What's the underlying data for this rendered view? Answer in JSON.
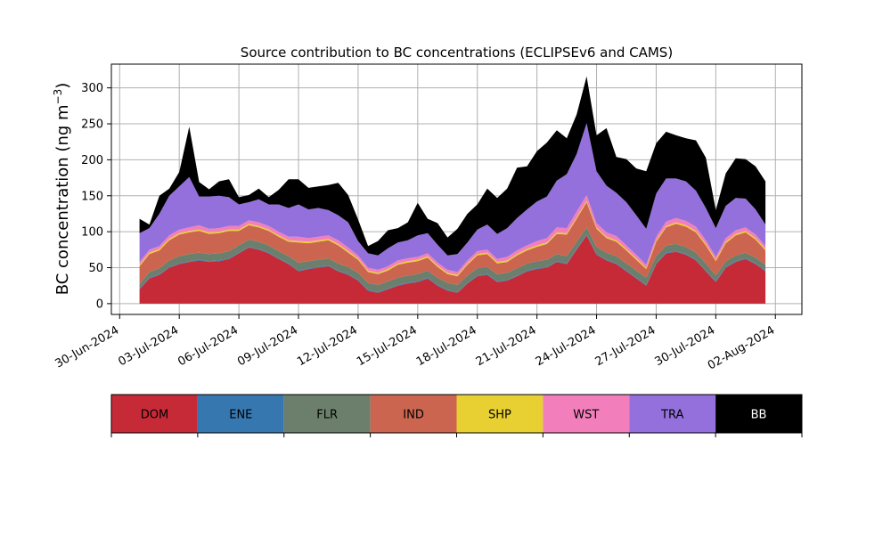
{
  "chart_data": {
    "type": "area",
    "stacked": true,
    "title": "Source contribution to BC concentrations (ECLIPSEv6 and CAMS)",
    "ylabel": "BC concentration (ng m",
    "ylabel_sup": "−3",
    "ylabel_close": ")",
    "ylim": [
      -15,
      333
    ],
    "xlim": [
      "2024-06-29T14:00",
      "2024-08-03T08:00"
    ],
    "grid": true,
    "yticks": [
      0,
      50,
      100,
      150,
      200,
      250,
      300
    ],
    "xtick_dates": [
      "2024-06-30",
      "2024-07-03",
      "2024-07-06",
      "2024-07-09",
      "2024-07-12",
      "2024-07-15",
      "2024-07-18",
      "2024-07-21",
      "2024-07-24",
      "2024-07-27",
      "2024-07-30",
      "2024-08-02"
    ],
    "xtick_labels": [
      "30-Jun-2024",
      "03-Jul-2024",
      "06-Jul-2024",
      "09-Jul-2024",
      "12-Jul-2024",
      "15-Jul-2024",
      "18-Jul-2024",
      "21-Jul-2024",
      "24-Jul-2024",
      "27-Jul-2024",
      "30-Jul-2024",
      "02-Aug-2024"
    ],
    "x": [
      "2024-07-01",
      "2024-07-01T12:00",
      "2024-07-02",
      "2024-07-02T12:00",
      "2024-07-03",
      "2024-07-03T12:00",
      "2024-07-04",
      "2024-07-04T12:00",
      "2024-07-05",
      "2024-07-05T12:00",
      "2024-07-06",
      "2024-07-06T12:00",
      "2024-07-07",
      "2024-07-07T12:00",
      "2024-07-08",
      "2024-07-08T12:00",
      "2024-07-09",
      "2024-07-09T12:00",
      "2024-07-10",
      "2024-07-10T12:00",
      "2024-07-11",
      "2024-07-11T12:00",
      "2024-07-12",
      "2024-07-12T12:00",
      "2024-07-13",
      "2024-07-13T12:00",
      "2024-07-14",
      "2024-07-14T12:00",
      "2024-07-15",
      "2024-07-15T12:00",
      "2024-07-16",
      "2024-07-16T12:00",
      "2024-07-17",
      "2024-07-17T12:00",
      "2024-07-18",
      "2024-07-18T12:00",
      "2024-07-19",
      "2024-07-19T12:00",
      "2024-07-20",
      "2024-07-20T12:00",
      "2024-07-21",
      "2024-07-21T12:00",
      "2024-07-22",
      "2024-07-22T12:00",
      "2024-07-23",
      "2024-07-23T12:00",
      "2024-07-24",
      "2024-07-24T12:00",
      "2024-07-25",
      "2024-07-25T12:00",
      "2024-07-26",
      "2024-07-26T12:00",
      "2024-07-27",
      "2024-07-27T12:00",
      "2024-07-28",
      "2024-07-28T12:00",
      "2024-07-29",
      "2024-07-29T12:00",
      "2024-07-30",
      "2024-07-30T12:00",
      "2024-07-31",
      "2024-07-31T12:00",
      "2024-08-01",
      "2024-08-01T12:00"
    ],
    "series": [
      {
        "name": "DOM",
        "color": "#c62a37",
        "values": [
          20,
          35,
          40,
          50,
          55,
          58,
          60,
          58,
          59,
          62,
          70,
          78,
          75,
          70,
          62,
          55,
          45,
          48,
          50,
          52,
          45,
          40,
          32,
          18,
          15,
          20,
          25,
          28,
          30,
          35,
          25,
          18,
          15,
          28,
          38,
          40,
          30,
          32,
          38,
          45,
          48,
          50,
          58,
          55,
          75,
          95,
          68,
          60,
          55,
          45,
          35,
          25,
          55,
          70,
          72,
          68,
          60,
          45,
          30,
          50,
          58,
          62,
          55,
          45
        ]
      },
      {
        "name": "ENE",
        "color": "#3777b0",
        "values": [
          1,
          1,
          1,
          1,
          1,
          1,
          1,
          1,
          1,
          1,
          1,
          1,
          1,
          1,
          1,
          1,
          1,
          1,
          1,
          1,
          1,
          1,
          1,
          1,
          1,
          1,
          1,
          1,
          1,
          1,
          1,
          1,
          1,
          1,
          1,
          1,
          1,
          1,
          1,
          1,
          1,
          1,
          1,
          1,
          1,
          1,
          1,
          1,
          1,
          1,
          1,
          1,
          1,
          1,
          1,
          1,
          1,
          1,
          1,
          1,
          1,
          1,
          1,
          1
        ]
      },
      {
        "name": "FLR",
        "color": "#6b7f6c",
        "values": [
          6,
          8,
          8,
          9,
          10,
          10,
          10,
          10,
          10,
          10,
          10,
          10,
          10,
          10,
          10,
          10,
          11,
          10,
          10,
          10,
          10,
          10,
          10,
          10,
          10,
          10,
          10,
          10,
          10,
          10,
          10,
          10,
          10,
          10,
          10,
          10,
          10,
          10,
          10,
          10,
          10,
          10,
          10,
          10,
          10,
          10,
          10,
          10,
          10,
          10,
          10,
          10,
          10,
          10,
          10,
          10,
          10,
          10,
          8,
          8,
          8,
          8,
          8,
          8
        ]
      },
      {
        "name": "IND",
        "color": "#cb6550",
        "values": [
          25,
          25,
          25,
          28,
          30,
          30,
          30,
          28,
          28,
          28,
          20,
          20,
          20,
          20,
          20,
          20,
          28,
          25,
          25,
          25,
          25,
          20,
          18,
          15,
          15,
          15,
          18,
          18,
          18,
          18,
          15,
          12,
          12,
          15,
          18,
          18,
          15,
          15,
          18,
          18,
          20,
          22,
          28,
          30,
          32,
          35,
          25,
          20,
          20,
          18,
          15,
          12,
          20,
          25,
          28,
          28,
          28,
          25,
          20,
          25,
          28,
          28,
          25,
          20
        ]
      },
      {
        "name": "SHP",
        "color": "#e8d032",
        "values": [
          2,
          2,
          2,
          2,
          2,
          2,
          2,
          2,
          2,
          2,
          2,
          2,
          2,
          2,
          2,
          2,
          2,
          2,
          2,
          2,
          2,
          2,
          2,
          2,
          2,
          2,
          2,
          2,
          2,
          2,
          2,
          2,
          2,
          2,
          2,
          2,
          2,
          2,
          2,
          2,
          2,
          2,
          2,
          2,
          2,
          2,
          2,
          2,
          2,
          2,
          2,
          2,
          2,
          2,
          2,
          2,
          2,
          2,
          2,
          2,
          2,
          2,
          2,
          2
        ]
      },
      {
        "name": "WST",
        "color": "#f27fbb",
        "values": [
          4,
          4,
          4,
          5,
          5,
          5,
          6,
          5,
          5,
          5,
          5,
          5,
          5,
          5,
          5,
          5,
          6,
          5,
          5,
          5,
          5,
          5,
          4,
          4,
          4,
          4,
          4,
          4,
          4,
          4,
          4,
          4,
          4,
          4,
          4,
          4,
          4,
          5,
          5,
          5,
          6,
          6,
          7,
          7,
          8,
          8,
          6,
          6,
          6,
          5,
          5,
          4,
          5,
          6,
          6,
          6,
          6,
          5,
          4,
          5,
          5,
          5,
          5,
          4
        ]
      },
      {
        "name": "TRA",
        "color": "#9470dc",
        "values": [
          40,
          30,
          45,
          55,
          60,
          70,
          40,
          45,
          45,
          40,
          30,
          25,
          32,
          30,
          38,
          40,
          45,
          40,
          40,
          35,
          35,
          35,
          20,
          20,
          20,
          25,
          25,
          25,
          30,
          28,
          25,
          20,
          25,
          25,
          30,
          35,
          35,
          40,
          45,
          50,
          55,
          58,
          65,
          75,
          80,
          100,
          72,
          65,
          60,
          60,
          55,
          50,
          60,
          60,
          55,
          55,
          50,
          45,
          40,
          45,
          45,
          40,
          35,
          30
        ]
      },
      {
        "name": "BB",
        "color": "#000000",
        "values": [
          20,
          5,
          25,
          10,
          20,
          70,
          20,
          10,
          20,
          25,
          10,
          10,
          15,
          10,
          20,
          40,
          35,
          30,
          30,
          35,
          45,
          38,
          30,
          10,
          20,
          25,
          20,
          25,
          45,
          20,
          30,
          25,
          35,
          40,
          35,
          50,
          50,
          55,
          70,
          60,
          70,
          75,
          70,
          50,
          55,
          65,
          50,
          80,
          50,
          60,
          65,
          80,
          70,
          65,
          60,
          60,
          70,
          70,
          25,
          45,
          55,
          55,
          60,
          60
        ]
      }
    ]
  }
}
